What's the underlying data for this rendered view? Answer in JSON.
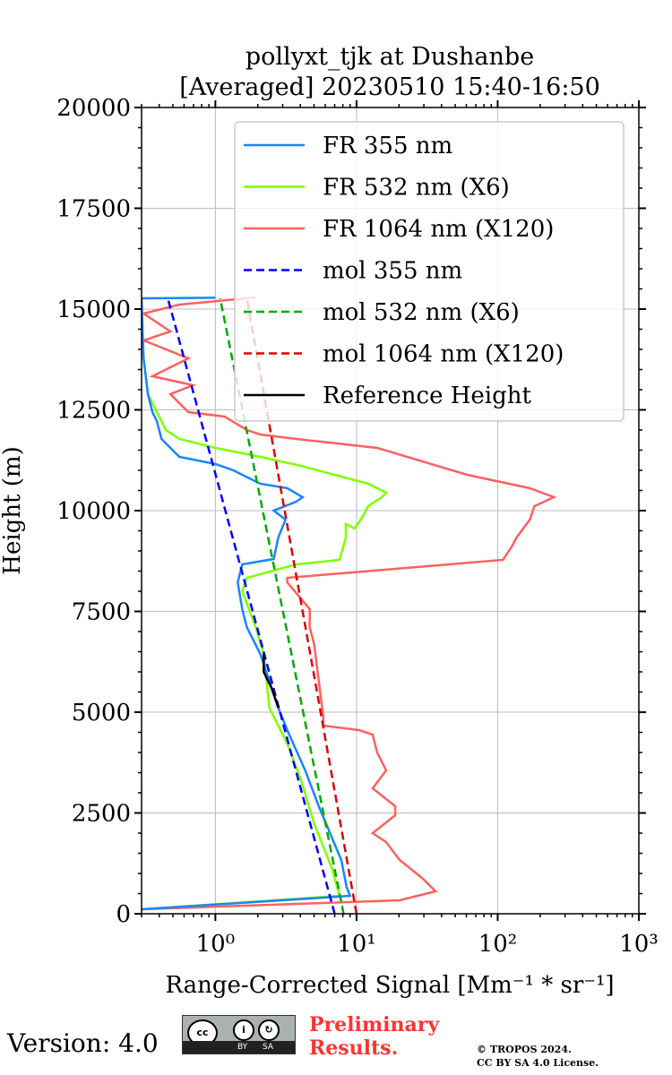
{
  "chart_data": {
    "type": "line",
    "title": [
      "pollyxt_tjk at Dushanbe",
      "[Averaged] 20230510 15:40-16:50"
    ],
    "xlabel": "Range-Corrected Signal [Mm⁻¹ * sr⁻¹]",
    "ylabel": "Height (m)",
    "xscale": "log",
    "xlim": [
      0.3,
      1000
    ],
    "ylim": [
      0,
      20000
    ],
    "xticks": [
      1,
      10,
      100,
      1000
    ],
    "xtick_labels": [
      "10⁰",
      "10¹",
      "10²",
      "10³"
    ],
    "yticks": [
      0,
      2500,
      5000,
      7500,
      10000,
      12500,
      15000,
      17500,
      20000
    ],
    "ytick_labels": [
      "0",
      "2500",
      "5000",
      "7500",
      "10000",
      "12500",
      "15000",
      "17500",
      "20000"
    ],
    "grid": true,
    "legend_position": "top-right",
    "series": [
      {
        "name": "FR 355 nm",
        "color": "#1a85ff",
        "dash": false,
        "points": [
          [
            0.3,
            111
          ],
          [
            9.0,
            444
          ],
          [
            8.5,
            667
          ],
          [
            7.8,
            1333
          ],
          [
            5.4,
            2667
          ],
          [
            4.33,
            3556
          ],
          [
            3.23,
            4556
          ],
          [
            2.79,
            5111
          ],
          [
            2.08,
            6444
          ],
          [
            1.67,
            7111
          ],
          [
            1.55,
            7556
          ],
          [
            1.44,
            8222
          ],
          [
            1.55,
            8667
          ],
          [
            2.59,
            8800
          ],
          [
            2.79,
            9333
          ],
          [
            3.14,
            9778
          ],
          [
            2.59,
            10000
          ],
          [
            3.74,
            10222
          ],
          [
            4.15,
            10333
          ],
          [
            3.23,
            10556
          ],
          [
            2.08,
            10667
          ],
          [
            1.34,
            11000
          ],
          [
            1.0,
            11156
          ],
          [
            0.556,
            11333
          ],
          [
            0.415,
            11778
          ],
          [
            0.385,
            12222
          ],
          [
            0.358,
            12444
          ],
          [
            0.333,
            12889
          ],
          [
            0.31,
            13778
          ],
          [
            0.3,
            15267
          ],
          [
            1.0,
            15280
          ]
        ]
      },
      {
        "name": "FR 532 nm (X6)",
        "color": "#80ff00",
        "dash": false,
        "points": [
          [
            0.3,
            111
          ],
          [
            7.57,
            444
          ],
          [
            6.72,
            1111
          ],
          [
            5.02,
            2222
          ],
          [
            4.03,
            3333
          ],
          [
            3.23,
            4222
          ],
          [
            2.59,
            4889
          ],
          [
            2.41,
            5111
          ],
          [
            2.2,
            6444
          ],
          [
            1.93,
            7111
          ],
          [
            1.55,
            8000
          ],
          [
            1.67,
            8333
          ],
          [
            3.74,
            8667
          ],
          [
            7.57,
            8778
          ],
          [
            8.4,
            9333
          ],
          [
            8.4,
            9667
          ],
          [
            9.7,
            9556
          ],
          [
            11.2,
            9889
          ],
          [
            12.1,
            10111
          ],
          [
            15.1,
            10333
          ],
          [
            16.2,
            10444
          ],
          [
            12.1,
            10667
          ],
          [
            4.03,
            11111
          ],
          [
            2.08,
            11333
          ],
          [
            1.0,
            11556
          ],
          [
            0.556,
            11778
          ],
          [
            0.446,
            12000
          ],
          [
            0.385,
            12444
          ],
          [
            0.333,
            12889
          ],
          [
            0.31,
            13778
          ],
          [
            0.3,
            14000
          ]
        ]
      },
      {
        "name": "FR 1064 nm (X120)",
        "color": "#ff6060",
        "dash": false,
        "points": [
          [
            0.3,
            111
          ],
          [
            20.2,
            333
          ],
          [
            36.3,
            556
          ],
          [
            29.1,
            889
          ],
          [
            20.2,
            1333
          ],
          [
            16.2,
            1778
          ],
          [
            13.0,
            2000
          ],
          [
            18.8,
            2444
          ],
          [
            18.8,
            2667
          ],
          [
            13.0,
            3111
          ],
          [
            16.2,
            3556
          ],
          [
            14.0,
            4000
          ],
          [
            13.0,
            4444
          ],
          [
            10.4,
            4556
          ],
          [
            5.81,
            4667
          ],
          [
            5.81,
            4889
          ],
          [
            5.4,
            5778
          ],
          [
            5.02,
            6667
          ],
          [
            4.66,
            7111
          ],
          [
            4.66,
            7556
          ],
          [
            3.23,
            8222
          ],
          [
            3.23,
            8333
          ],
          [
            109,
            8778
          ],
          [
            126,
            9111
          ],
          [
            136,
            9333
          ],
          [
            169,
            9778
          ],
          [
            182,
            10111
          ],
          [
            250,
            10333
          ],
          [
            169,
            10556
          ],
          [
            60.8,
            10889
          ],
          [
            14.0,
            11556
          ],
          [
            3.74,
            11778
          ],
          [
            2.08,
            11889
          ],
          [
            1.67,
            12000
          ],
          [
            1.16,
            12333
          ],
          [
            0.644,
            12444
          ],
          [
            0.556,
            12667
          ],
          [
            0.48,
            12889
          ],
          [
            0.693,
            13111
          ],
          [
            0.358,
            13333
          ],
          [
            0.644,
            13778
          ],
          [
            0.31,
            14222
          ],
          [
            0.48,
            14444
          ],
          [
            0.31,
            14889
          ],
          [
            0.556,
            15111
          ],
          [
            1.93,
            15289
          ]
        ]
      },
      {
        "name": "mol 355 nm",
        "color": "#0000ff",
        "dash": true,
        "points": [
          [
            7.0,
            0
          ],
          [
            0.46,
            15270
          ]
        ]
      },
      {
        "name": "mol 532 nm (X6)",
        "color": "#00aa00",
        "dash": true,
        "points": [
          [
            8.1,
            0
          ],
          [
            1.08,
            15270
          ]
        ]
      },
      {
        "name": "mol 1064 nm (X120)",
        "color": "#dd0000",
        "dash": true,
        "points": [
          [
            10,
            0
          ],
          [
            1.67,
            15270
          ]
        ]
      },
      {
        "name": "Reference Height",
        "color": "#000000",
        "dash": false,
        "points": [
          [
            2.79,
            5111
          ],
          [
            2.5,
            5600
          ],
          [
            2.2,
            6000
          ],
          [
            2.2,
            6444
          ]
        ]
      }
    ]
  },
  "footer": {
    "version": "Version: 4.0",
    "cc_by": "BY",
    "cc_sa": "SA",
    "cc_logo": "cc",
    "preliminary": [
      "Preliminary",
      "Results."
    ],
    "copyright": [
      "© TROPOS 2024.",
      "CC BY SA 4.0 License."
    ]
  }
}
